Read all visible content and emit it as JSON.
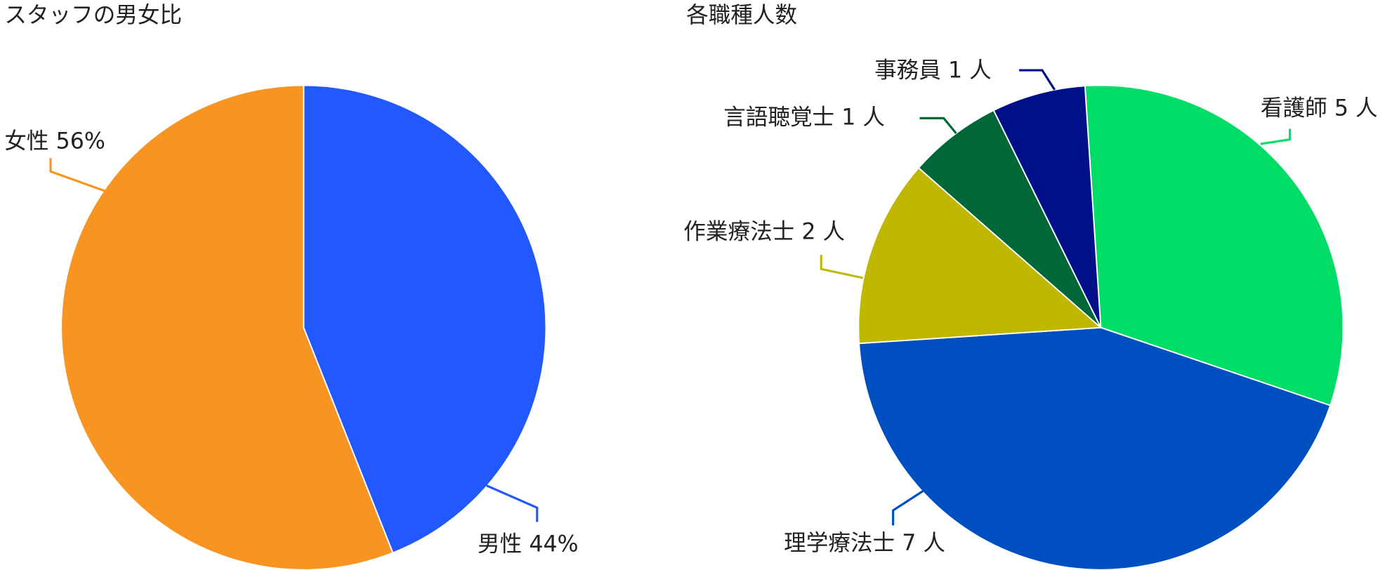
{
  "chart_data": [
    {
      "type": "pie",
      "title": "スタッフの男女比",
      "categories": [
        "男性",
        "女性"
      ],
      "values": [
        44,
        56
      ],
      "value_labels": [
        "44%",
        "56%"
      ],
      "colors": [
        "#2158ff",
        "#f79422"
      ]
    },
    {
      "type": "pie",
      "title": "各職種人数",
      "categories": [
        "看護師",
        "理学療法士",
        "作業療法士",
        "言語聴覚士",
        "事務員"
      ],
      "values": [
        5,
        7,
        2,
        1,
        1
      ],
      "value_labels": [
        "5 人",
        "7 人",
        "2 人",
        "1 人",
        "1 人"
      ],
      "colors": [
        "#00dd66",
        "#004fc0",
        "#c0b800",
        "#006838",
        "#001088"
      ]
    }
  ]
}
